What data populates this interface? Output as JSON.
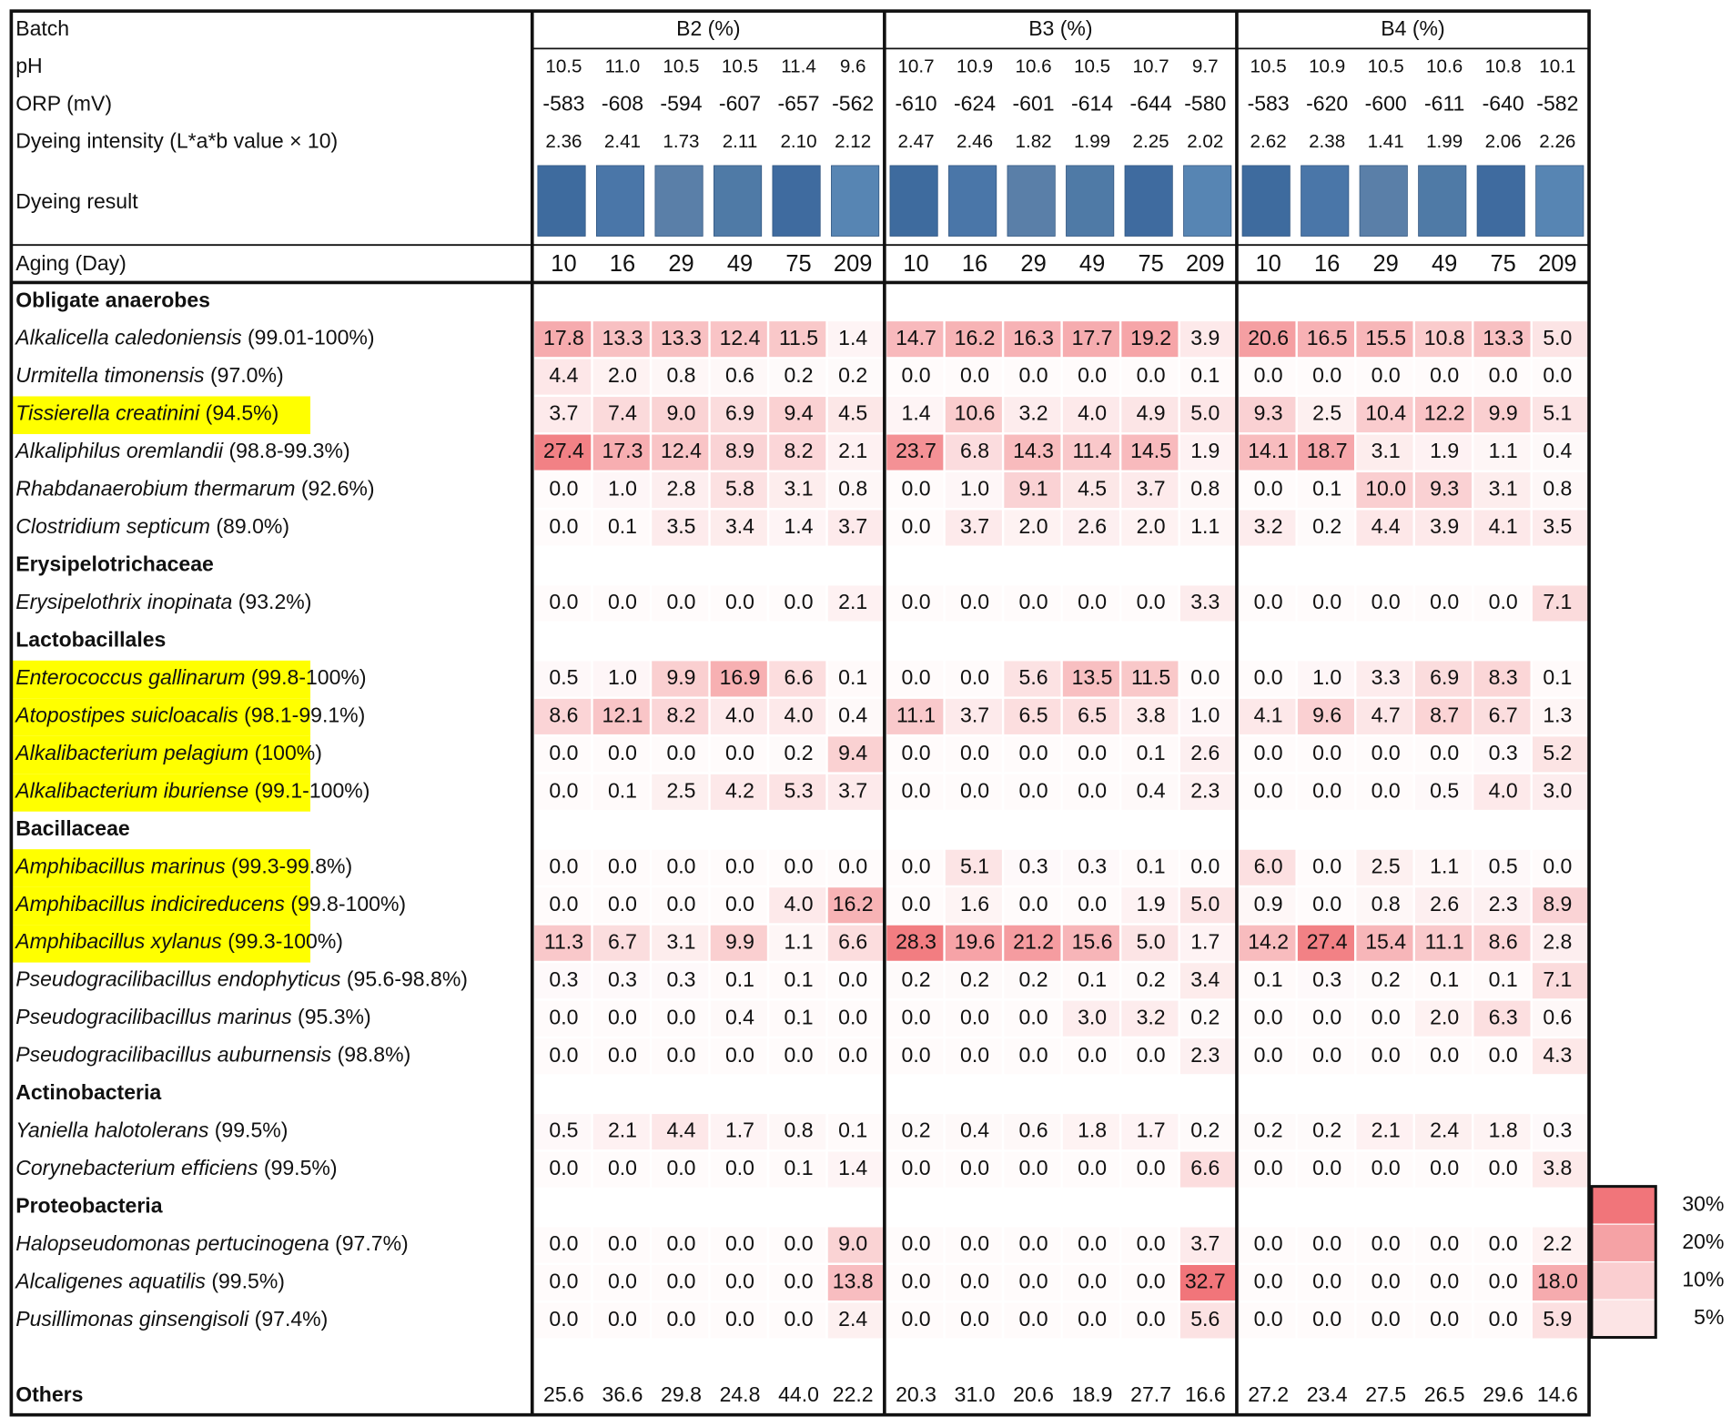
{
  "header": {
    "batch_label": "Batch",
    "batches": [
      "B2 (%)",
      "B3 (%)",
      "B4 (%)"
    ]
  },
  "conditions": [
    {
      "label": "pH",
      "values": [
        "10.5",
        "11.0",
        "10.5",
        "10.5",
        "11.4",
        "9.6",
        "10.7",
        "10.9",
        "10.6",
        "10.5",
        "10.7",
        "9.7",
        "10.5",
        "10.9",
        "10.5",
        "10.6",
        "10.8",
        "10.1"
      ]
    },
    {
      "label": "ORP (mV)",
      "values": [
        "-583",
        "-608",
        "-594",
        "-607",
        "-657",
        "-562",
        "-610",
        "-624",
        "-601",
        "-614",
        "-644",
        "-580",
        "-583",
        "-620",
        "-600",
        "-611",
        "-640",
        "-582"
      ]
    },
    {
      "label": "Dyeing intensity (L*a*b value × 10)",
      "values": [
        "2.36",
        "2.41",
        "1.73",
        "2.11",
        "2.10",
        "2.12",
        "2.47",
        "2.46",
        "1.82",
        "1.99",
        "2.25",
        "2.02",
        "2.62",
        "2.38",
        "1.41",
        "1.99",
        "2.06",
        "2.26"
      ]
    }
  ],
  "dyeing_result_label": "Dyeing result",
  "aging": {
    "label": "Aging (Day)",
    "values": [
      "10",
      "16",
      "29",
      "49",
      "75",
      "209",
      "10",
      "16",
      "29",
      "49",
      "75",
      "209",
      "10",
      "16",
      "29",
      "49",
      "75",
      "209"
    ]
  },
  "rows": [
    {
      "group": "Obligate anaerobes"
    },
    {
      "name": "Alkalicella caledoniensis",
      "identity": "(99.01-100%)",
      "values": [
        "17.8",
        "13.3",
        "13.3",
        "12.4",
        "11.5",
        "1.4",
        "14.7",
        "16.2",
        "16.3",
        "17.7",
        "19.2",
        "3.9",
        "20.6",
        "16.5",
        "15.5",
        "10.8",
        "13.3",
        "5.0"
      ]
    },
    {
      "name": "Urmitella timonensis",
      "identity": "(97.0%)",
      "values": [
        "4.4",
        "2.0",
        "0.8",
        "0.6",
        "0.2",
        "0.2",
        "0.0",
        "0.0",
        "0.0",
        "0.0",
        "0.0",
        "0.1",
        "0.0",
        "0.0",
        "0.0",
        "0.0",
        "0.0",
        "0.0"
      ]
    },
    {
      "name": "Tissierella creatinini",
      "identity": "(94.5%)",
      "highlight": true,
      "values": [
        "3.7",
        "7.4",
        "9.0",
        "6.9",
        "9.4",
        "4.5",
        "1.4",
        "10.6",
        "3.2",
        "4.0",
        "4.9",
        "5.0",
        "9.3",
        "2.5",
        "10.4",
        "12.2",
        "9.9",
        "5.1"
      ]
    },
    {
      "name": "Alkaliphilus oremlandii",
      "identity": "(98.8-99.3%)",
      "values": [
        "27.4",
        "17.3",
        "12.4",
        "8.9",
        "8.2",
        "2.1",
        "23.7",
        "6.8",
        "14.3",
        "11.4",
        "14.5",
        "1.9",
        "14.1",
        "18.7",
        "3.1",
        "1.9",
        "1.1",
        "0.4"
      ]
    },
    {
      "name": "Rhabdanaerobium thermarum",
      "identity": "(92.6%)",
      "values": [
        "0.0",
        "1.0",
        "2.8",
        "5.8",
        "3.1",
        "0.8",
        "0.0",
        "1.0",
        "9.1",
        "4.5",
        "3.7",
        "0.8",
        "0.0",
        "0.1",
        "10.0",
        "9.3",
        "3.1",
        "0.8"
      ]
    },
    {
      "name": "Clostridium septicum",
      "identity": "(89.0%)",
      "values": [
        "0.0",
        "0.1",
        "3.5",
        "3.4",
        "1.4",
        "3.7",
        "0.0",
        "3.7",
        "2.0",
        "2.6",
        "2.0",
        "1.1",
        "3.2",
        "0.2",
        "4.4",
        "3.9",
        "4.1",
        "3.5"
      ]
    },
    {
      "group": "Erysipelotrichaceae"
    },
    {
      "name": "Erysipelothrix inopinata",
      "identity": "(93.2%)",
      "values": [
        "0.0",
        "0.0",
        "0.0",
        "0.0",
        "0.0",
        "2.1",
        "0.0",
        "0.0",
        "0.0",
        "0.0",
        "0.0",
        "3.3",
        "0.0",
        "0.0",
        "0.0",
        "0.0",
        "0.0",
        "7.1"
      ]
    },
    {
      "group": "Lactobacillales"
    },
    {
      "name": "Enterococcus gallinarum",
      "identity": "(99.8-100%)",
      "highlight": true,
      "values": [
        "0.5",
        "1.0",
        "9.9",
        "16.9",
        "6.6",
        "0.1",
        "0.0",
        "0.0",
        "5.6",
        "13.5",
        "11.5",
        "0.0",
        "0.0",
        "1.0",
        "3.3",
        "6.9",
        "8.3",
        "0.1"
      ]
    },
    {
      "name": "Atopostipes suicloacalis",
      "identity": "(98.1-99.1%)",
      "highlight": true,
      "values": [
        "8.6",
        "12.1",
        "8.2",
        "4.0",
        "4.0",
        "0.4",
        "11.1",
        "3.7",
        "6.5",
        "6.5",
        "3.8",
        "1.0",
        "4.1",
        "9.6",
        "4.7",
        "8.7",
        "6.7",
        "1.3"
      ]
    },
    {
      "name": "Alkalibacterium pelagium",
      "identity": "(100%)",
      "highlight": true,
      "values": [
        "0.0",
        "0.0",
        "0.0",
        "0.0",
        "0.2",
        "9.4",
        "0.0",
        "0.0",
        "0.0",
        "0.0",
        "0.1",
        "2.6",
        "0.0",
        "0.0",
        "0.0",
        "0.0",
        "0.3",
        "5.2"
      ]
    },
    {
      "name": "Alkalibacterium iburiense",
      "identity": "(99.1-100%)",
      "highlight": true,
      "values": [
        "0.0",
        "0.1",
        "2.5",
        "4.2",
        "5.3",
        "3.7",
        "0.0",
        "0.0",
        "0.0",
        "0.0",
        "0.4",
        "2.3",
        "0.0",
        "0.0",
        "0.0",
        "0.5",
        "4.0",
        "3.0"
      ]
    },
    {
      "group": "Bacillaceae"
    },
    {
      "name": "Amphibacillus marinus",
      "identity": "(99.3-99.8%)",
      "highlight": true,
      "values": [
        "0.0",
        "0.0",
        "0.0",
        "0.0",
        "0.0",
        "0.0",
        "0.0",
        "5.1",
        "0.3",
        "0.3",
        "0.1",
        "0.0",
        "6.0",
        "0.0",
        "2.5",
        "1.1",
        "0.5",
        "0.0"
      ]
    },
    {
      "name": "Amphibacillus indicireducens",
      "identity": "(99.8-100%)",
      "highlight": true,
      "values": [
        "0.0",
        "0.0",
        "0.0",
        "0.0",
        "4.0",
        "16.2",
        "0.0",
        "1.6",
        "0.0",
        "0.0",
        "1.9",
        "5.0",
        "0.9",
        "0.0",
        "0.8",
        "2.6",
        "2.3",
        "8.9"
      ]
    },
    {
      "name": "Amphibacillus xylanus",
      "identity": "(99.3-100%)",
      "highlight": true,
      "values": [
        "11.3",
        "6.7",
        "3.1",
        "9.9",
        "1.1",
        "6.6",
        "28.3",
        "19.6",
        "21.2",
        "15.6",
        "5.0",
        "1.7",
        "14.2",
        "27.4",
        "15.4",
        "11.1",
        "8.6",
        "2.8"
      ]
    },
    {
      "name": "Pseudogracilibacillus endophyticus",
      "identity": "(95.6-98.8%)",
      "values": [
        "0.3",
        "0.3",
        "0.3",
        "0.1",
        "0.1",
        "0.0",
        "0.2",
        "0.2",
        "0.2",
        "0.1",
        "0.2",
        "3.4",
        "0.1",
        "0.3",
        "0.2",
        "0.1",
        "0.1",
        "7.1"
      ]
    },
    {
      "name": "Pseudogracilibacillus marinus",
      "identity": "(95.3%)",
      "values": [
        "0.0",
        "0.0",
        "0.0",
        "0.4",
        "0.1",
        "0.0",
        "0.0",
        "0.0",
        "0.0",
        "3.0",
        "3.2",
        "0.2",
        "0.0",
        "0.0",
        "0.0",
        "2.0",
        "6.3",
        "0.6"
      ]
    },
    {
      "name": "Pseudogracilibacillus auburnensis",
      "identity": "(98.8%)",
      "values": [
        "0.0",
        "0.0",
        "0.0",
        "0.0",
        "0.0",
        "0.0",
        "0.0",
        "0.0",
        "0.0",
        "0.0",
        "0.0",
        "2.3",
        "0.0",
        "0.0",
        "0.0",
        "0.0",
        "0.0",
        "4.3"
      ]
    },
    {
      "group": "Actinobacteria"
    },
    {
      "name": "Yaniella halotolerans",
      "identity": "(99.5%)",
      "values": [
        "0.5",
        "2.1",
        "4.4",
        "1.7",
        "0.8",
        "0.1",
        "0.2",
        "0.4",
        "0.6",
        "1.8",
        "1.7",
        "0.2",
        "0.2",
        "0.2",
        "2.1",
        "2.4",
        "1.8",
        "0.3"
      ]
    },
    {
      "name": "Corynebacterium efficiens",
      "identity": "(99.5%)",
      "values": [
        "0.0",
        "0.0",
        "0.0",
        "0.0",
        "0.1",
        "1.4",
        "0.0",
        "0.0",
        "0.0",
        "0.0",
        "0.0",
        "6.6",
        "0.0",
        "0.0",
        "0.0",
        "0.0",
        "0.0",
        "3.8"
      ]
    },
    {
      "group": "Proteobacteria"
    },
    {
      "name": "Halopseudomonas pertucinogena",
      "identity": "(97.7%)",
      "values": [
        "0.0",
        "0.0",
        "0.0",
        "0.0",
        "0.0",
        "9.0",
        "0.0",
        "0.0",
        "0.0",
        "0.0",
        "0.0",
        "3.7",
        "0.0",
        "0.0",
        "0.0",
        "0.0",
        "0.0",
        "2.2"
      ]
    },
    {
      "name": "Alcaligenes aquatilis",
      "identity": "(99.5%)",
      "values": [
        "0.0",
        "0.0",
        "0.0",
        "0.0",
        "0.0",
        "13.8",
        "0.0",
        "0.0",
        "0.0",
        "0.0",
        "0.0",
        "32.7",
        "0.0",
        "0.0",
        "0.0",
        "0.0",
        "0.0",
        "18.0"
      ]
    },
    {
      "name": "Pusillimonas ginsengisoli",
      "identity": "(97.4%)",
      "values": [
        "0.0",
        "0.0",
        "0.0",
        "0.0",
        "0.0",
        "2.4",
        "0.0",
        "0.0",
        "0.0",
        "0.0",
        "0.0",
        "5.6",
        "0.0",
        "0.0",
        "0.0",
        "0.0",
        "0.0",
        "5.9"
      ]
    }
  ],
  "others": {
    "label": "Others",
    "values": [
      "25.6",
      "36.6",
      "29.8",
      "24.8",
      "44.0",
      "22.2",
      "20.3",
      "31.0",
      "20.6",
      "18.9",
      "27.7",
      "16.6",
      "27.2",
      "23.4",
      "27.5",
      "26.5",
      "29.6",
      "14.6"
    ]
  },
  "legend": [
    {
      "value": 30,
      "label": "30%"
    },
    {
      "value": 20,
      "label": "20%"
    },
    {
      "value": 10,
      "label": "10%"
    },
    {
      "value": 5,
      "label": "5%"
    }
  ],
  "highlight_color": "#ffff00"
}
